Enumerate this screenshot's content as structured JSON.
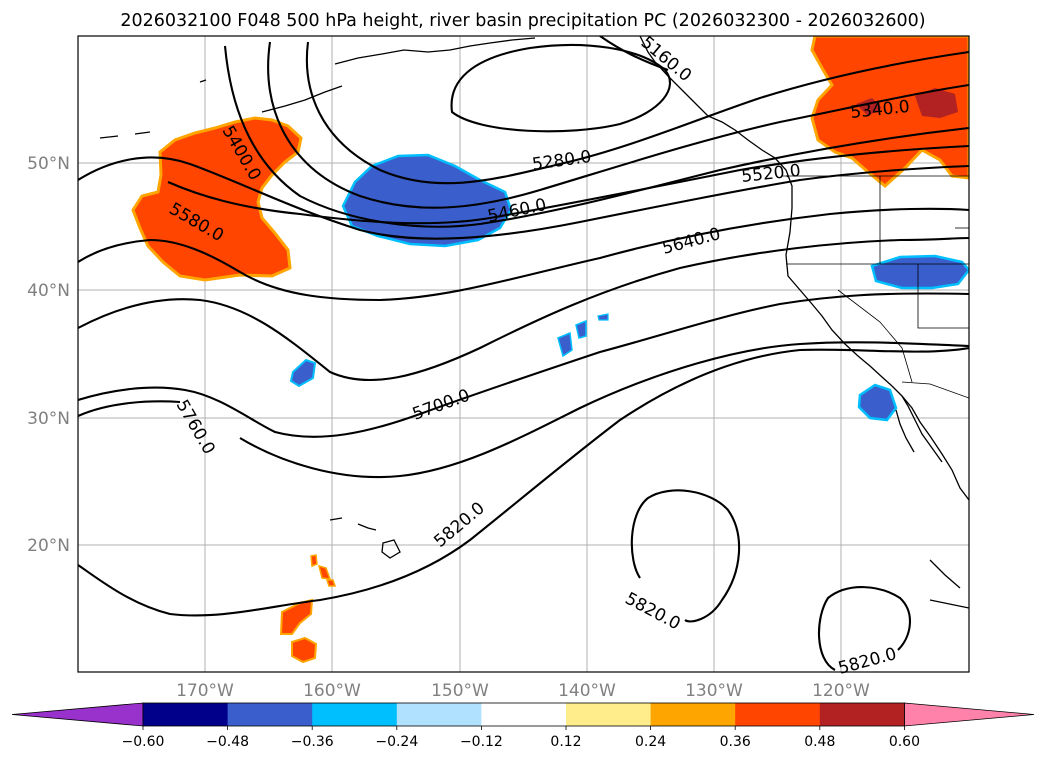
{
  "title": "2026032100 F048 500 hPa height, river basin precipitation PC (2026032300 - 2026032600)",
  "lat_labels": [
    "50°N",
    "40°N",
    "30°N",
    "20°N"
  ],
  "lon_labels": [
    "170°W",
    "160°W",
    "150°W",
    "140°W",
    "130°W",
    "120°W"
  ],
  "contour_labels": [
    "5400.0",
    "5580.0",
    "5280.0",
    "5460.0",
    "5520.0",
    "5340.0",
    "5640.0",
    "5700.0",
    "5760.0",
    "5820.0",
    "5820.0",
    "5820.0"
  ],
  "partial_label": "5160.0",
  "colorbar": {
    "colors": [
      "#9932cc",
      "#00008b",
      "#3a5fcd",
      "#00bfff",
      "#b0e2ff",
      "#ffffff",
      "#ffec8b",
      "#ffa500",
      "#ff4500",
      "#b22222",
      "#ff82ab"
    ],
    "tick_labels": [
      "−0.60",
      "−0.48",
      "−0.36",
      "−0.24",
      "−0.12",
      "0.12",
      "0.24",
      "0.36",
      "0.48",
      "0.60"
    ]
  },
  "shading_colors": {
    "positive_fill": "#ff4500",
    "positive_edge": "#ffa500",
    "positive_core": "#b22222",
    "negative_fill": "#3a5fcd",
    "negative_edge": "#00bfff"
  },
  "chart_data": {
    "type": "map",
    "title": "2026032100 F048 500 hPa height, river basin precipitation PC (2026032300 - 2026032600)",
    "field": "500 hPa geopotential height contours (m)",
    "shading": "river basin precipitation PC",
    "contour_levels": [
      5280,
      5340,
      5400,
      5460,
      5520,
      5580,
      5640,
      5700,
      5760,
      5820
    ],
    "lon_range": [
      -180,
      -110
    ],
    "lat_range": [
      10,
      60
    ],
    "colorbar_ticks": [
      -0.6,
      -0.48,
      -0.36,
      -0.24,
      -0.12,
      0.12,
      0.24,
      0.36,
      0.48,
      0.6
    ]
  }
}
